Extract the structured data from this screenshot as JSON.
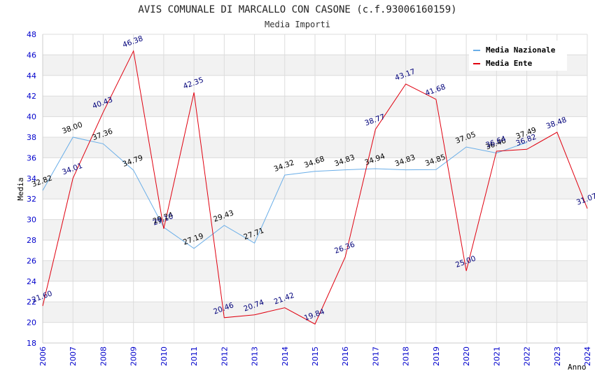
{
  "chart_data": {
    "type": "line",
    "title": "AVIS COMUNALE DI MARCALLO CON CASONE (c.f.93006160159)",
    "subtitle": "Media Importi",
    "xlabel": "Anno",
    "ylabel": "Media",
    "ylim": [
      18,
      48
    ],
    "ytick_step": 2,
    "grid": true,
    "legend_position": "top-right",
    "categories": [
      "2006",
      "2007",
      "2008",
      "2009",
      "2010",
      "2011",
      "2012",
      "2013",
      "2014",
      "2015",
      "2016",
      "2017",
      "2018",
      "2019",
      "2020",
      "2021",
      "2022",
      "2023",
      "2024"
    ],
    "series": [
      {
        "name": "Media Nazionale",
        "color": "#6aaee8",
        "label_color": "#000000",
        "values": [
          32.82,
          38.0,
          37.36,
          34.79,
          29.24,
          27.19,
          29.43,
          27.71,
          34.32,
          34.68,
          34.83,
          34.94,
          34.83,
          34.85,
          37.05,
          36.46,
          37.49,
          null,
          null
        ],
        "labels": [
          "32.82",
          "38.00",
          "37.36",
          "34.79",
          "29.24",
          "27.19",
          "29.43",
          "27.71",
          "34.32",
          "34.68",
          "34.83",
          "34.94",
          "34.83",
          "34.85",
          "37.05",
          "36.46",
          "37.49",
          "",
          ""
        ]
      },
      {
        "name": "Media Ente",
        "color": "#e0000f",
        "label_color": "#00007a",
        "values": [
          21.6,
          34.01,
          40.43,
          46.38,
          29.1,
          42.35,
          20.46,
          20.74,
          21.42,
          19.84,
          26.36,
          38.77,
          43.17,
          41.68,
          25.0,
          36.64,
          36.82,
          38.48,
          31.07
        ],
        "labels": [
          "21.60",
          "34.01",
          "40.43",
          "46.38",
          "29.10",
          "42.35",
          "20.46",
          "20.74",
          "21.42",
          "19.84",
          "26.36",
          "38.77",
          "43.17",
          "41.68",
          "25.00",
          "36.64",
          "36.82",
          "38.48",
          "31.07"
        ]
      }
    ]
  }
}
